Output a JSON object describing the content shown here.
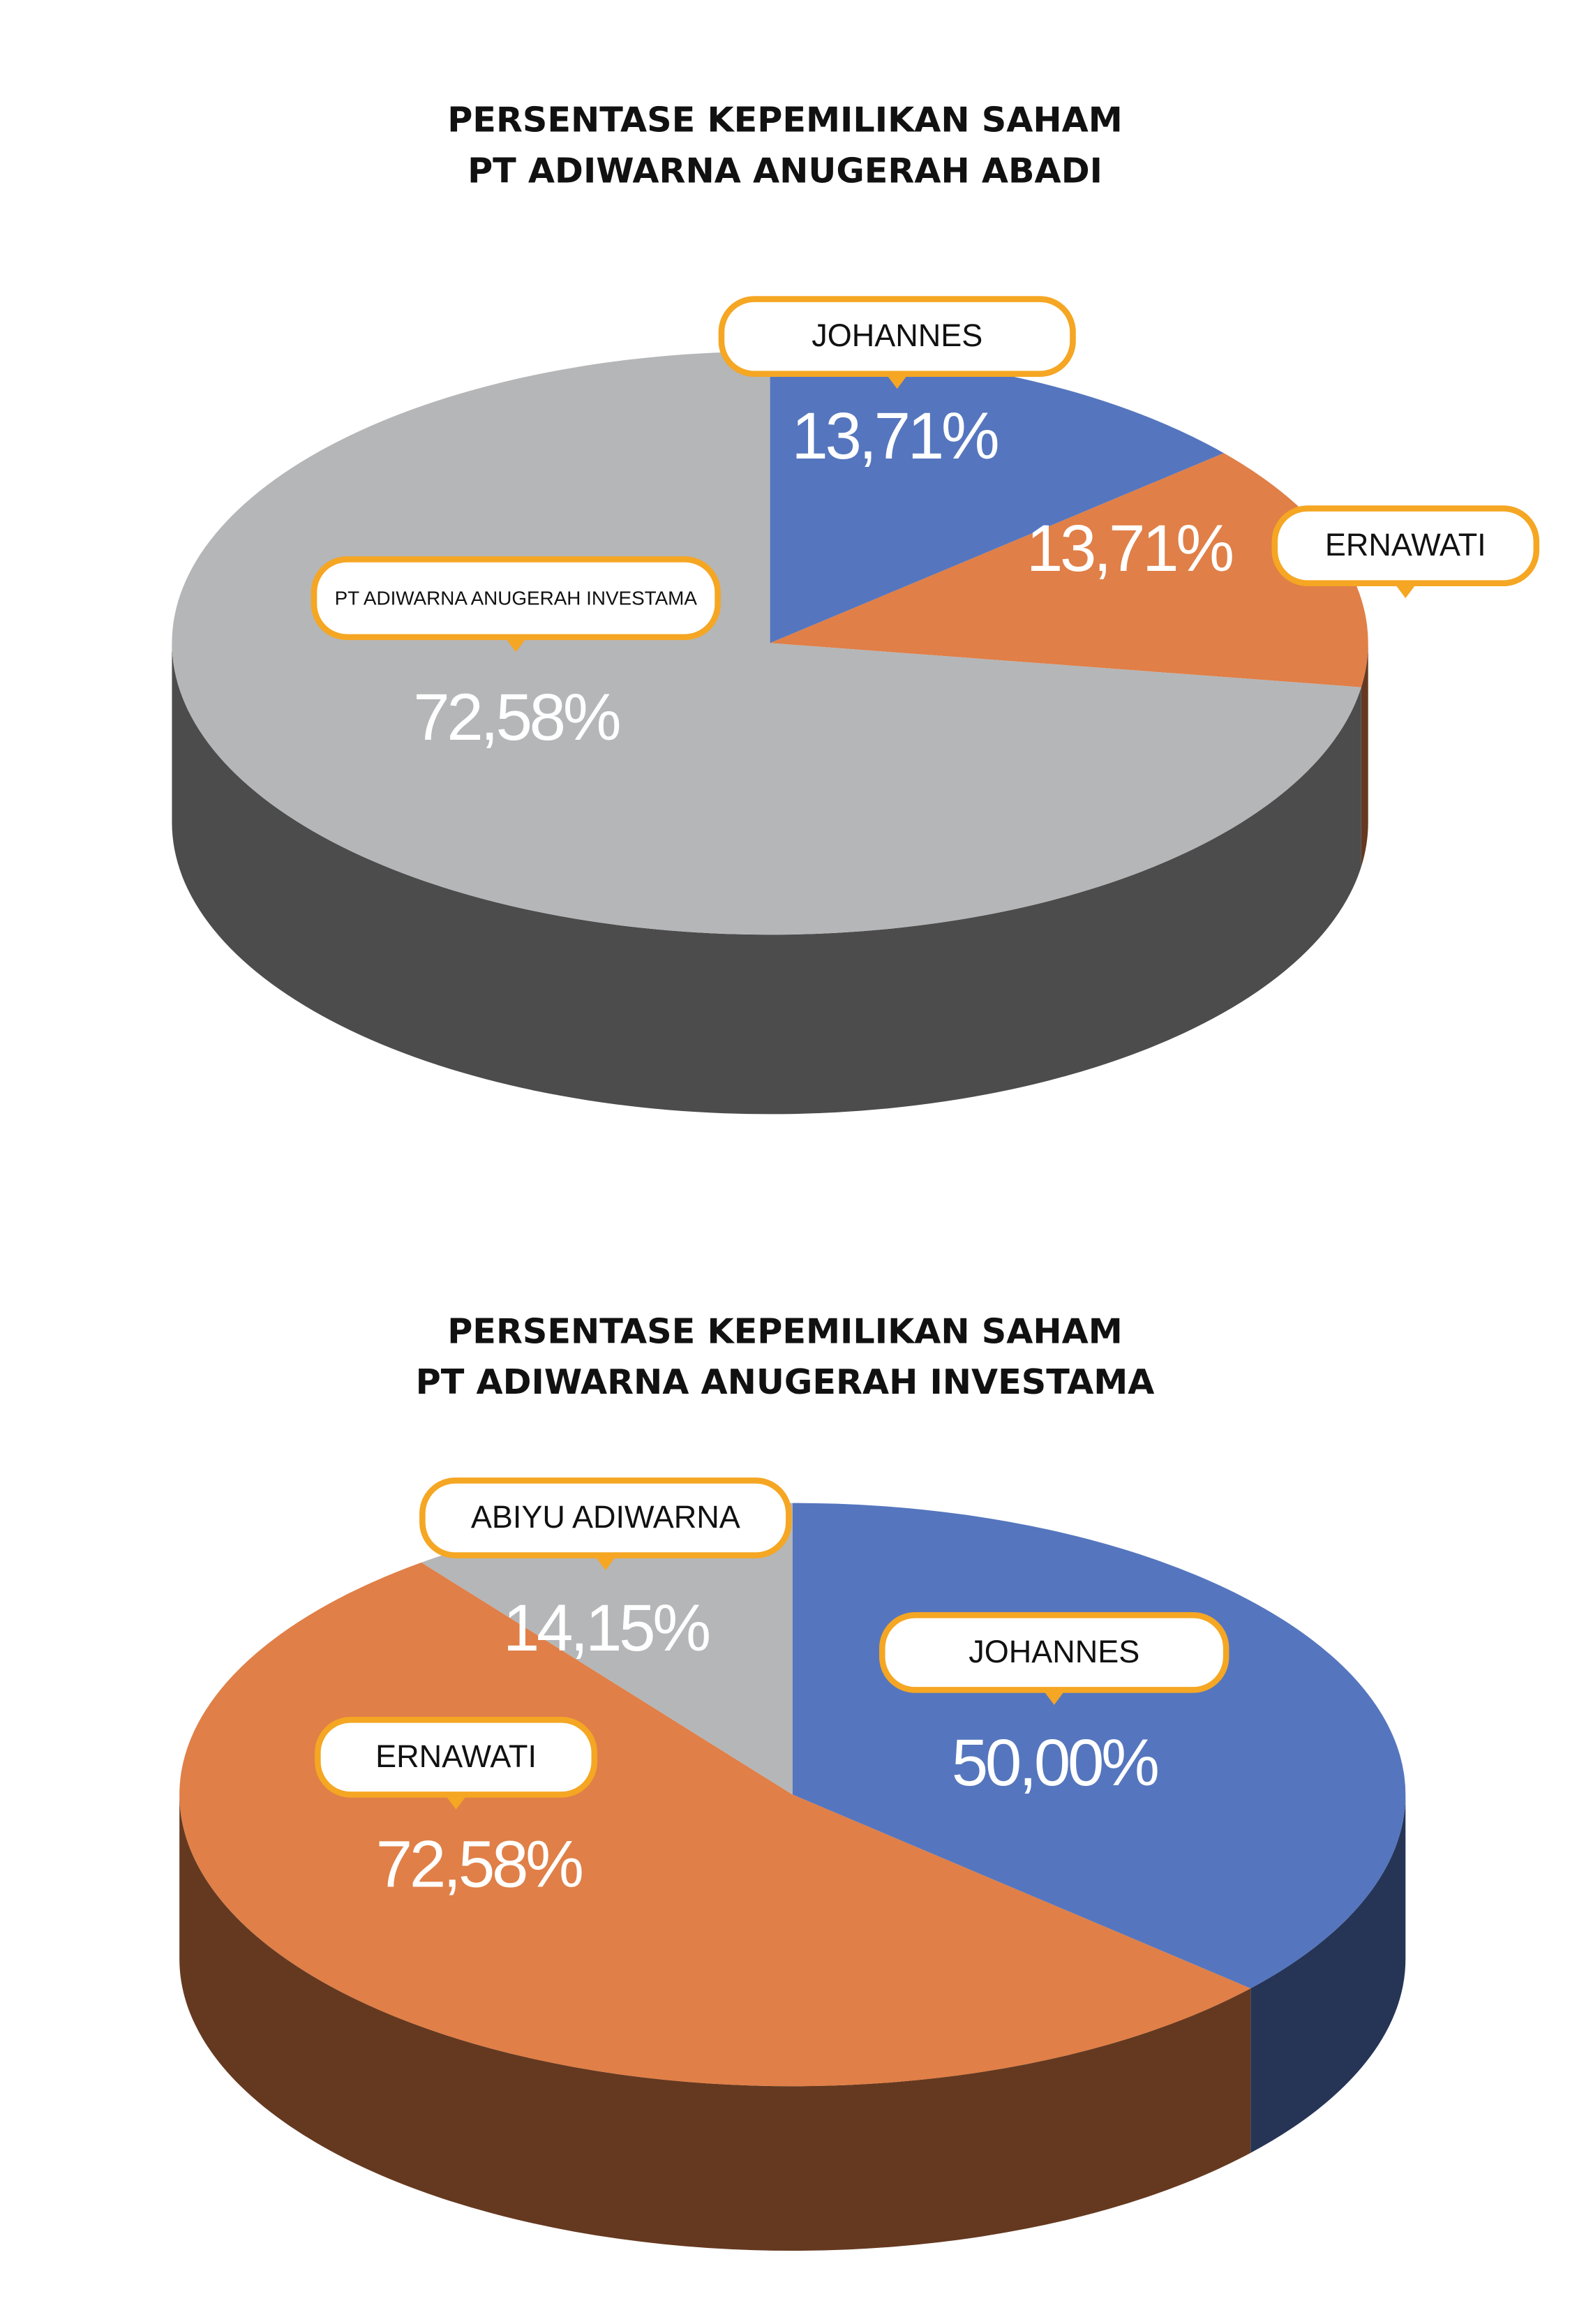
{
  "chart_data": [
    {
      "type": "pie",
      "title": [
        "PERSENTASE KEPEMILIKAN SAHAM",
        "PT ADIWARNA ANUGERAH ABADI"
      ],
      "categories": [
        "JOHANNES",
        "ERNAWATI",
        "PT ADIWARNA ANUGERAH INVESTAMA"
      ],
      "values": [
        13.71,
        13.71,
        72.58
      ],
      "value_labels": [
        "13,71%",
        "13,71%",
        "72,58%"
      ],
      "colors": [
        "#5576be",
        "#e07f47",
        "#b5b6b8"
      ]
    },
    {
      "type": "pie",
      "title": [
        "PERSENTASE KEPEMILIKAN SAHAM",
        "PT ADIWARNA ANUGERAH INVESTAMA"
      ],
      "categories": [
        "JOHANNES",
        "ERNAWATI",
        "ABIYU ADIWARNA"
      ],
      "values": [
        50.0,
        72.58,
        14.15
      ],
      "value_labels": [
        "50,00%",
        "72,58%",
        "14,15%"
      ],
      "colors": [
        "#5576be",
        "#e07f47",
        "#b5b6b8"
      ]
    }
  ]
}
